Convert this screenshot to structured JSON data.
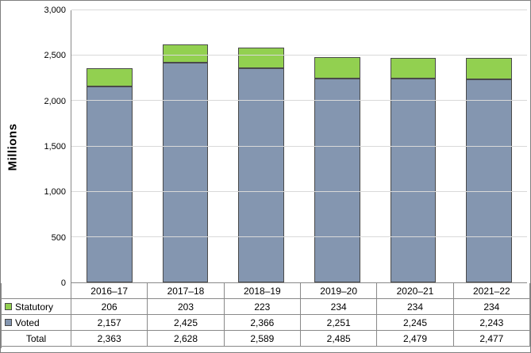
{
  "chart_data": {
    "type": "bar",
    "stacked": true,
    "title": "",
    "xlabel": "",
    "ylabel": "Millions",
    "ylim": [
      0,
      3000
    ],
    "ytick_interval": 500,
    "yticks": [
      "0",
      "500",
      "1,000",
      "1,500",
      "2,000",
      "2,500",
      "3,000"
    ],
    "grid": true,
    "legend_position": "table-left",
    "categories": [
      "2016–17",
      "2017–18",
      "2018–19",
      "2019–20",
      "2020–21",
      "2021–22"
    ],
    "series": [
      {
        "name": "Voted",
        "color": "#8496B0",
        "values": [
          2157,
          2425,
          2366,
          2251,
          2245,
          2243
        ]
      },
      {
        "name": "Statutory",
        "color": "#92D050",
        "values": [
          206,
          203,
          223,
          234,
          234,
          234
        ]
      }
    ],
    "totals": {
      "label": "Total",
      "values": [
        2363,
        2628,
        2589,
        2485,
        2479,
        2477
      ]
    }
  },
  "table": {
    "rows": [
      {
        "label": "Statutory",
        "swatch": "#92D050",
        "values": [
          "206",
          "203",
          "223",
          "234",
          "234",
          "234"
        ]
      },
      {
        "label": "Voted",
        "swatch": "#8496B0",
        "values": [
          "2,157",
          "2,425",
          "2,366",
          "2,251",
          "2,245",
          "2,243"
        ]
      },
      {
        "label": "Total",
        "swatch": null,
        "values": [
          "2,363",
          "2,628",
          "2,589",
          "2,485",
          "2,479",
          "2,477"
        ]
      }
    ]
  }
}
